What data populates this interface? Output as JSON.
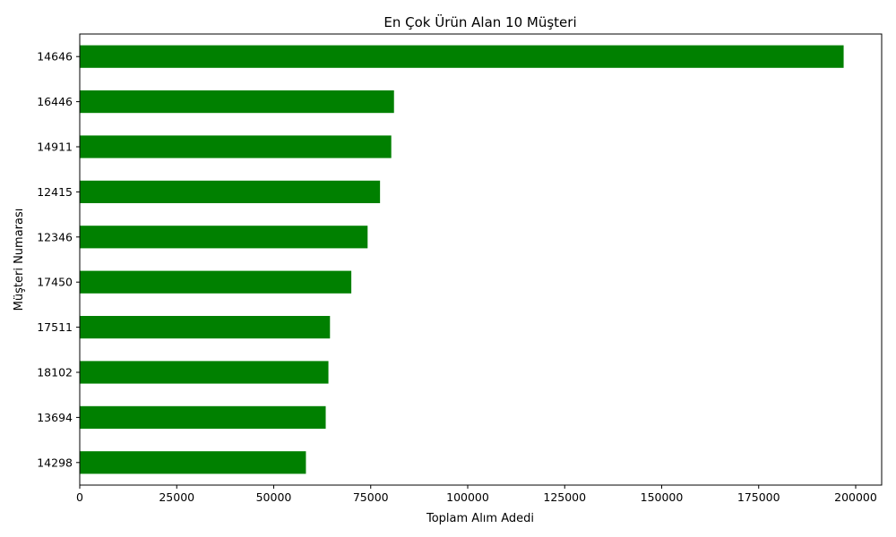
{
  "chart_data": {
    "type": "bar",
    "orientation": "horizontal",
    "title": "En Çok Ürün Alan 10 Müşteri",
    "xlabel": "Toplam Alım Adedi",
    "ylabel": "Müşteri Numarası",
    "categories": [
      "14646",
      "16446",
      "14911",
      "12415",
      "12346",
      "17450",
      "17511",
      "18102",
      "13694",
      "14298"
    ],
    "values": [
      196900,
      81000,
      80300,
      77400,
      74200,
      70000,
      64500,
      64100,
      63400,
      58300
    ],
    "xlim": [
      0,
      206700
    ],
    "xticks": [
      0,
      25000,
      50000,
      75000,
      100000,
      125000,
      150000,
      175000,
      200000
    ],
    "xtick_labels": [
      "0",
      "25000",
      "50000",
      "75000",
      "100000",
      "125000",
      "150000",
      "175000",
      "200000"
    ],
    "bar_color": "#008000",
    "grid": false,
    "legend": "none"
  }
}
